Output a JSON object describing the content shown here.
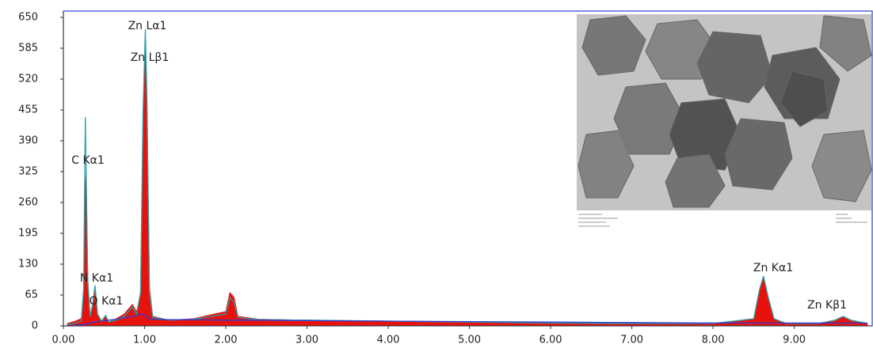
{
  "chart_data": {
    "type": "area",
    "x": [
      0.05,
      0.15,
      0.22,
      0.25,
      0.27,
      0.28,
      0.3,
      0.33,
      0.36,
      0.39,
      0.42,
      0.47,
      0.52,
      0.56,
      0.65,
      0.75,
      0.85,
      0.9,
      0.95,
      0.98,
      1.01,
      1.03,
      1.06,
      1.1,
      1.3,
      1.6,
      2.0,
      2.05,
      2.1,
      2.15,
      2.4,
      3.0,
      4.0,
      5.0,
      6.0,
      7.0,
      8.0,
      8.5,
      8.57,
      8.62,
      8.68,
      8.75,
      8.9,
      9.3,
      9.5,
      9.6,
      9.7,
      9.9
    ],
    "series": [
      {
        "color": "#e8120c",
        "values": [
          5,
          10,
          15,
          60,
          300,
          320,
          100,
          20,
          40,
          75,
          25,
          10,
          20,
          8,
          15,
          25,
          45,
          30,
          60,
          400,
          590,
          450,
          80,
          20,
          12,
          15,
          30,
          70,
          60,
          20,
          14,
          12,
          10,
          8,
          6,
          5,
          5,
          15,
          70,
          100,
          60,
          15,
          5,
          4,
          10,
          18,
          10,
          4
        ]
      },
      {
        "color": "#2aa0a8",
        "values": [
          3,
          6,
          10,
          80,
          440,
          330,
          90,
          20,
          45,
          85,
          25,
          10,
          22,
          8,
          12,
          20,
          40,
          25,
          70,
          450,
          625,
          470,
          70,
          18,
          12,
          14,
          25,
          60,
          50,
          18,
          13,
          12,
          10,
          8,
          6,
          5,
          5,
          15,
          75,
          105,
          60,
          15,
          5,
          5,
          12,
          20,
          12,
          5
        ]
      },
      {
        "color": "#2b3fd8",
        "values": [
          0,
          1,
          2,
          3,
          4,
          4,
          5,
          6,
          7,
          8,
          9,
          10,
          11,
          12,
          14,
          17,
          20,
          22,
          24,
          25,
          22,
          18,
          15,
          14,
          13,
          13,
          12,
          12,
          12,
          12,
          12,
          11,
          10,
          9,
          8,
          7,
          6,
          6,
          6,
          6,
          6,
          6,
          6,
          6,
          6,
          6,
          6,
          6
        ]
      }
    ],
    "annotations": [
      "Zn Lα1",
      "Zn Lβ1",
      "C  Kα1",
      "N  Kα1",
      "O  Kα1",
      "Zn Kα1",
      "Zn Kβ1"
    ],
    "xlim": [
      0,
      9.95
    ],
    "ylim": [
      0,
      660
    ],
    "xticks": [
      {
        "value": 0,
        "label": "0.00"
      },
      {
        "value": 1,
        "label": "1.00"
      },
      {
        "value": 2,
        "label": "2.00"
      },
      {
        "value": 3,
        "label": "3.00"
      },
      {
        "value": 4,
        "label": "4.00"
      },
      {
        "value": 5,
        "label": "5.00"
      },
      {
        "value": 6,
        "label": "6.00"
      },
      {
        "value": 7,
        "label": "7.00"
      },
      {
        "value": 8,
        "label": "8.00"
      },
      {
        "value": 9,
        "label": "9.00"
      }
    ],
    "yticks": [
      0,
      65,
      130,
      195,
      260,
      325,
      390,
      455,
      520,
      585,
      650
    ]
  }
}
